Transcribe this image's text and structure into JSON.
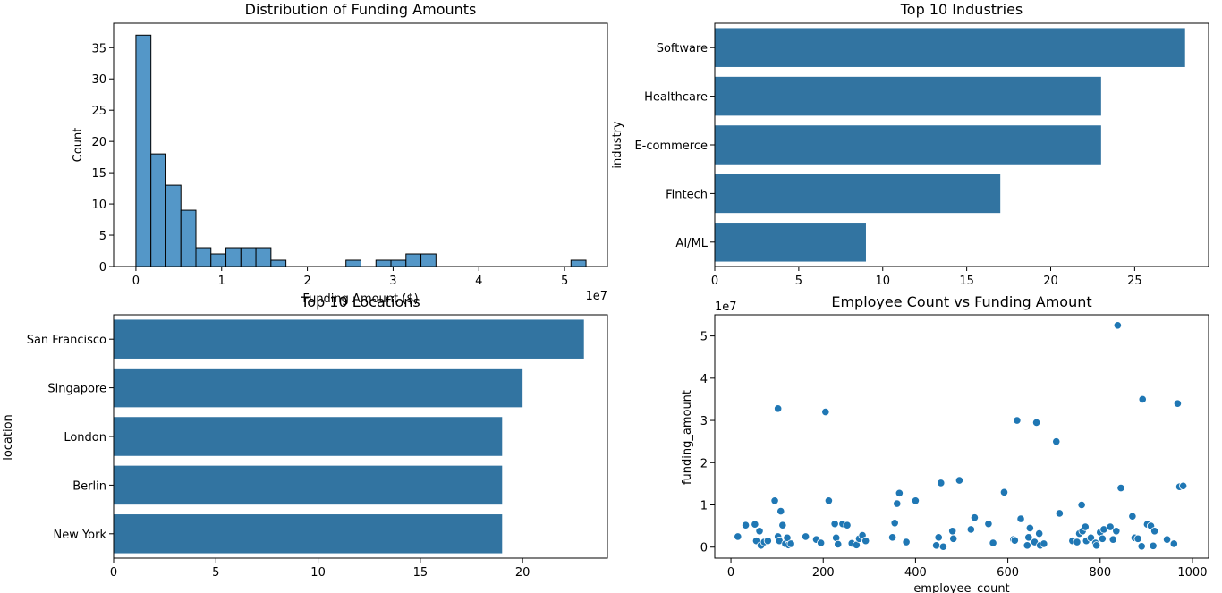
{
  "chart_data": [
    {
      "type": "bar",
      "title": "Distribution of Funding Amounts",
      "xlabel": "Funding Amount ($)",
      "ylabel": "Count",
      "x_offset_label": "1e7",
      "color": "#5497c8",
      "edge_color": "#000000",
      "bin_width": 1750000,
      "bin_start": 0,
      "counts": [
        37,
        18,
        13,
        9,
        3,
        2,
        3,
        3,
        3,
        1,
        0,
        0,
        0,
        0,
        1,
        0,
        1,
        1,
        2,
        2,
        0,
        0,
        0,
        0,
        0,
        0,
        0,
        0,
        0,
        1
      ],
      "xlim": [
        -2600000,
        55000000
      ],
      "ylim": [
        0,
        38.9
      ],
      "xticks": [
        0,
        10000000,
        20000000,
        30000000,
        40000000,
        50000000
      ],
      "xtick_labels": [
        "0",
        "1",
        "2",
        "3",
        "4",
        "5"
      ],
      "yticks": [
        0,
        5,
        10,
        15,
        20,
        25,
        30,
        35
      ],
      "ytick_labels": [
        "0",
        "5",
        "10",
        "15",
        "20",
        "25",
        "30",
        "35"
      ]
    },
    {
      "type": "bar",
      "orientation": "horizontal",
      "title": "Top 10 Industries",
      "xlabel": "",
      "ylabel": "industry",
      "color": "#3274a1",
      "categories": [
        "Software",
        "Healthcare",
        "E-commerce",
        "Fintech",
        "AI/ML"
      ],
      "values": [
        28,
        23,
        23,
        17,
        9
      ],
      "xlim": [
        0,
        29.4
      ],
      "xticks": [
        0,
        5,
        10,
        15,
        20,
        25
      ],
      "xtick_labels": [
        "0",
        "5",
        "10",
        "15",
        "20",
        "25"
      ]
    },
    {
      "type": "bar",
      "orientation": "horizontal",
      "title": "Top 10 Locations",
      "xlabel": "",
      "ylabel": "location",
      "color": "#3274a1",
      "categories": [
        "San Francisco",
        "Singapore",
        "London",
        "Berlin",
        "New York"
      ],
      "values": [
        23,
        20,
        19,
        19,
        19
      ],
      "xlim": [
        0,
        24.15
      ],
      "xticks": [
        0,
        5,
        10,
        15,
        20
      ],
      "xtick_labels": [
        "0",
        "5",
        "10",
        "15",
        "20"
      ]
    },
    {
      "type": "scatter",
      "title": "Employee Count vs Funding Amount",
      "xlabel": "employee_count",
      "ylabel": "funding_amount",
      "y_offset_label": "1e7",
      "color": "#1f77b4",
      "xlim": [
        -35,
        1035
      ],
      "ylim": [
        -2600000,
        55000000
      ],
      "xticks": [
        0,
        200,
        400,
        600,
        800,
        1000
      ],
      "xtick_labels": [
        "0",
        "200",
        "400",
        "600",
        "800",
        "1000"
      ],
      "yticks": [
        0,
        10000000,
        20000000,
        30000000,
        40000000,
        50000000
      ],
      "ytick_labels": [
        "0",
        "1",
        "2",
        "3",
        "4",
        "5"
      ],
      "points": [
        [
          15,
          2500000
        ],
        [
          32,
          5200000
        ],
        [
          52,
          5400000
        ],
        [
          55,
          1500000
        ],
        [
          62,
          3800000
        ],
        [
          65,
          400000
        ],
        [
          72,
          1200000
        ],
        [
          80,
          1500000
        ],
        [
          95,
          11000000
        ],
        [
          102,
          32800000
        ],
        [
          102,
          2500000
        ],
        [
          105,
          1500000
        ],
        [
          108,
          8500000
        ],
        [
          112,
          5200000
        ],
        [
          118,
          800000
        ],
        [
          122,
          2200000
        ],
        [
          125,
          500000
        ],
        [
          130,
          800000
        ],
        [
          162,
          2500000
        ],
        [
          185,
          1800000
        ],
        [
          195,
          1000000
        ],
        [
          205,
          32000000
        ],
        [
          212,
          11000000
        ],
        [
          225,
          5500000
        ],
        [
          228,
          2200000
        ],
        [
          232,
          700000
        ],
        [
          242,
          5500000
        ],
        [
          252,
          5200000
        ],
        [
          262,
          900000
        ],
        [
          272,
          500000
        ],
        [
          278,
          2000000
        ],
        [
          285,
          2800000
        ],
        [
          292,
          1500000
        ],
        [
          350,
          2300000
        ],
        [
          355,
          5700000
        ],
        [
          360,
          10300000
        ],
        [
          365,
          12800000
        ],
        [
          380,
          1200000
        ],
        [
          400,
          11000000
        ],
        [
          445,
          400000
        ],
        [
          450,
          2300000
        ],
        [
          455,
          15200000
        ],
        [
          460,
          100000
        ],
        [
          480,
          3800000
        ],
        [
          482,
          2000000
        ],
        [
          495,
          15800000
        ],
        [
          520,
          4200000
        ],
        [
          528,
          7000000
        ],
        [
          558,
          5500000
        ],
        [
          568,
          1000000
        ],
        [
          592,
          13000000
        ],
        [
          612,
          1800000
        ],
        [
          615,
          1600000
        ],
        [
          620,
          30000000
        ],
        [
          628,
          6700000
        ],
        [
          642,
          400000
        ],
        [
          645,
          2300000
        ],
        [
          648,
          4500000
        ],
        [
          658,
          1200000
        ],
        [
          662,
          29500000
        ],
        [
          668,
          3200000
        ],
        [
          670,
          400000
        ],
        [
          678,
          800000
        ],
        [
          705,
          25000000
        ],
        [
          712,
          8000000
        ],
        [
          740,
          1500000
        ],
        [
          750,
          1200000
        ],
        [
          755,
          3200000
        ],
        [
          760,
          10000000
        ],
        [
          762,
          3800000
        ],
        [
          768,
          4800000
        ],
        [
          770,
          1500000
        ],
        [
          780,
          2200000
        ],
        [
          790,
          1000000
        ],
        [
          792,
          400000
        ],
        [
          800,
          3500000
        ],
        [
          805,
          2000000
        ],
        [
          808,
          4200000
        ],
        [
          822,
          4800000
        ],
        [
          828,
          1800000
        ],
        [
          835,
          3800000
        ],
        [
          838,
          52500000
        ],
        [
          845,
          14000000
        ],
        [
          870,
          7300000
        ],
        [
          875,
          2200000
        ],
        [
          882,
          2000000
        ],
        [
          890,
          200000
        ],
        [
          892,
          35000000
        ],
        [
          902,
          5400000
        ],
        [
          910,
          5000000
        ],
        [
          915,
          300000
        ],
        [
          918,
          3800000
        ],
        [
          945,
          1800000
        ],
        [
          960,
          800000
        ],
        [
          968,
          34000000
        ],
        [
          972,
          14300000
        ],
        [
          980,
          14500000
        ]
      ]
    }
  ]
}
